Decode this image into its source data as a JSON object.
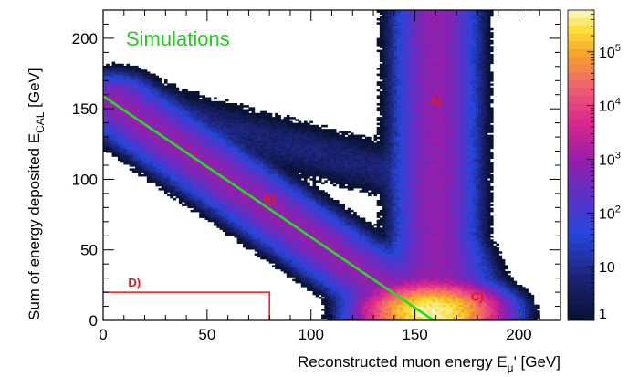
{
  "chart_data": {
    "type": "heatmap",
    "annotation": "Simulations",
    "xlabel_main": "Reconstructed muon energy E",
    "xlabel_sub": "μ",
    "xlabel_tail": "' [GeV]",
    "ylabel_main": "Sum of energy deposited E",
    "ylabel_sub": "CAL",
    "ylabel_tail": " [GeV]",
    "xlim": [
      0,
      220
    ],
    "ylim": [
      0,
      220
    ],
    "x_ticks": [
      0,
      50,
      100,
      150,
      200
    ],
    "y_ticks": [
      0,
      50,
      100,
      150,
      200
    ],
    "x_tick_labels": [
      "0",
      "50",
      "100",
      "150",
      "200"
    ],
    "y_tick_labels": [
      "0",
      "50",
      "100",
      "150",
      "200"
    ],
    "z_scale": "log",
    "colorbar_labels": [
      {
        "value": 1,
        "text": "1"
      },
      {
        "value": 10,
        "text": "10"
      },
      {
        "value": 100,
        "text": "10^2"
      },
      {
        "value": 1000,
        "text": "10^3"
      },
      {
        "value": 10000,
        "text": "10^4"
      },
      {
        "value": 100000,
        "text": "10^5"
      }
    ],
    "colorbar_max": 600000,
    "lines": [
      {
        "name": "green-line",
        "color": "#22dd22",
        "points": [
          [
            0,
            159
          ],
          [
            159,
            0
          ]
        ]
      }
    ],
    "region_D": {
      "x": [
        0,
        80
      ],
      "y": [
        0,
        20
      ],
      "color": "#e31a1c"
    },
    "region_labels": [
      {
        "text": "A)",
        "x": 160,
        "y": 153
      },
      {
        "text": "B)",
        "x": 80,
        "y": 83
      },
      {
        "text": "C)",
        "x": 180,
        "y": 14
      },
      {
        "text": "D)",
        "x": 12,
        "y": 24
      }
    ],
    "density_components": [
      {
        "kind": "diagonal-band",
        "from": [
          5,
          155
        ],
        "to": [
          150,
          8
        ],
        "width": 7,
        "peak": 900
      },
      {
        "kind": "vertical-band",
        "x": 160,
        "y_range": [
          15,
          220
        ],
        "width": 7,
        "peak": 900
      },
      {
        "kind": "core",
        "x": 158,
        "y": 6,
        "peak": 500000
      },
      {
        "kind": "upper-branch",
        "from": [
          10,
          155
        ],
        "to": [
          140,
          105
        ],
        "width": 8,
        "peak": 6
      }
    ]
  }
}
